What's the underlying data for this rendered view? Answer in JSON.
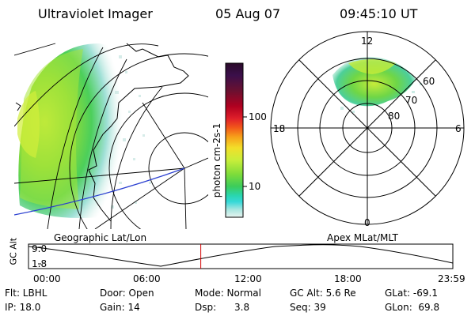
{
  "header": {
    "title": "Ultraviolet Imager",
    "date": "05 Aug 07",
    "time": "09:45:10 UT"
  },
  "left_panel": {
    "label": "Geographic Lat/Lon"
  },
  "colorbar": {
    "unit_label": "photon cm-2s-1",
    "ticks": [
      "100",
      "10"
    ],
    "colors": [
      "#2a0a2a",
      "#3b0f4a",
      "#6b1030",
      "#b00020",
      "#e0202a",
      "#f25a1a",
      "#f7a21a",
      "#f2df2a",
      "#c8ee3a",
      "#7fdc3a",
      "#3ccc5a",
      "#2ad6b0",
      "#36d8d8",
      "#a8e6e0",
      "#e8f4f0"
    ]
  },
  "polar_panel": {
    "label": "Apex MLat/MLT",
    "mlt_labels": {
      "top": "12",
      "left": "18",
      "right": "6",
      "bottom": "0"
    },
    "lat_labels": [
      "60",
      "70",
      "80"
    ]
  },
  "timeline": {
    "y_axis_label": "GC Alt",
    "y_ticks": [
      "9.0",
      "1.8"
    ],
    "x_ticks": [
      "00:00",
      "06:00",
      "12:00",
      "18:00",
      "23:59"
    ],
    "current_time_fraction": 0.406,
    "marker_color": "#d00000"
  },
  "info": {
    "row1": {
      "flt": "Flt: LBHL",
      "door": "Door: Open",
      "mode": "Mode: Normal",
      "gcalt": "GC Alt: 5.6 Re",
      "glat": "GLat: -69.1"
    },
    "row2": {
      "ip": "IP: 18.0",
      "gain": "Gain: 14",
      "dsp": "Dsp:      3.8",
      "seq": "Seq: 39",
      "glon": "GLon:  69.8"
    }
  },
  "colors": {
    "aurora_green": "#5ccf3a",
    "aurora_yellow": "#d9ef3a",
    "aurora_cyan": "#9fe0d6",
    "track_blue": "#2a3fd0"
  }
}
